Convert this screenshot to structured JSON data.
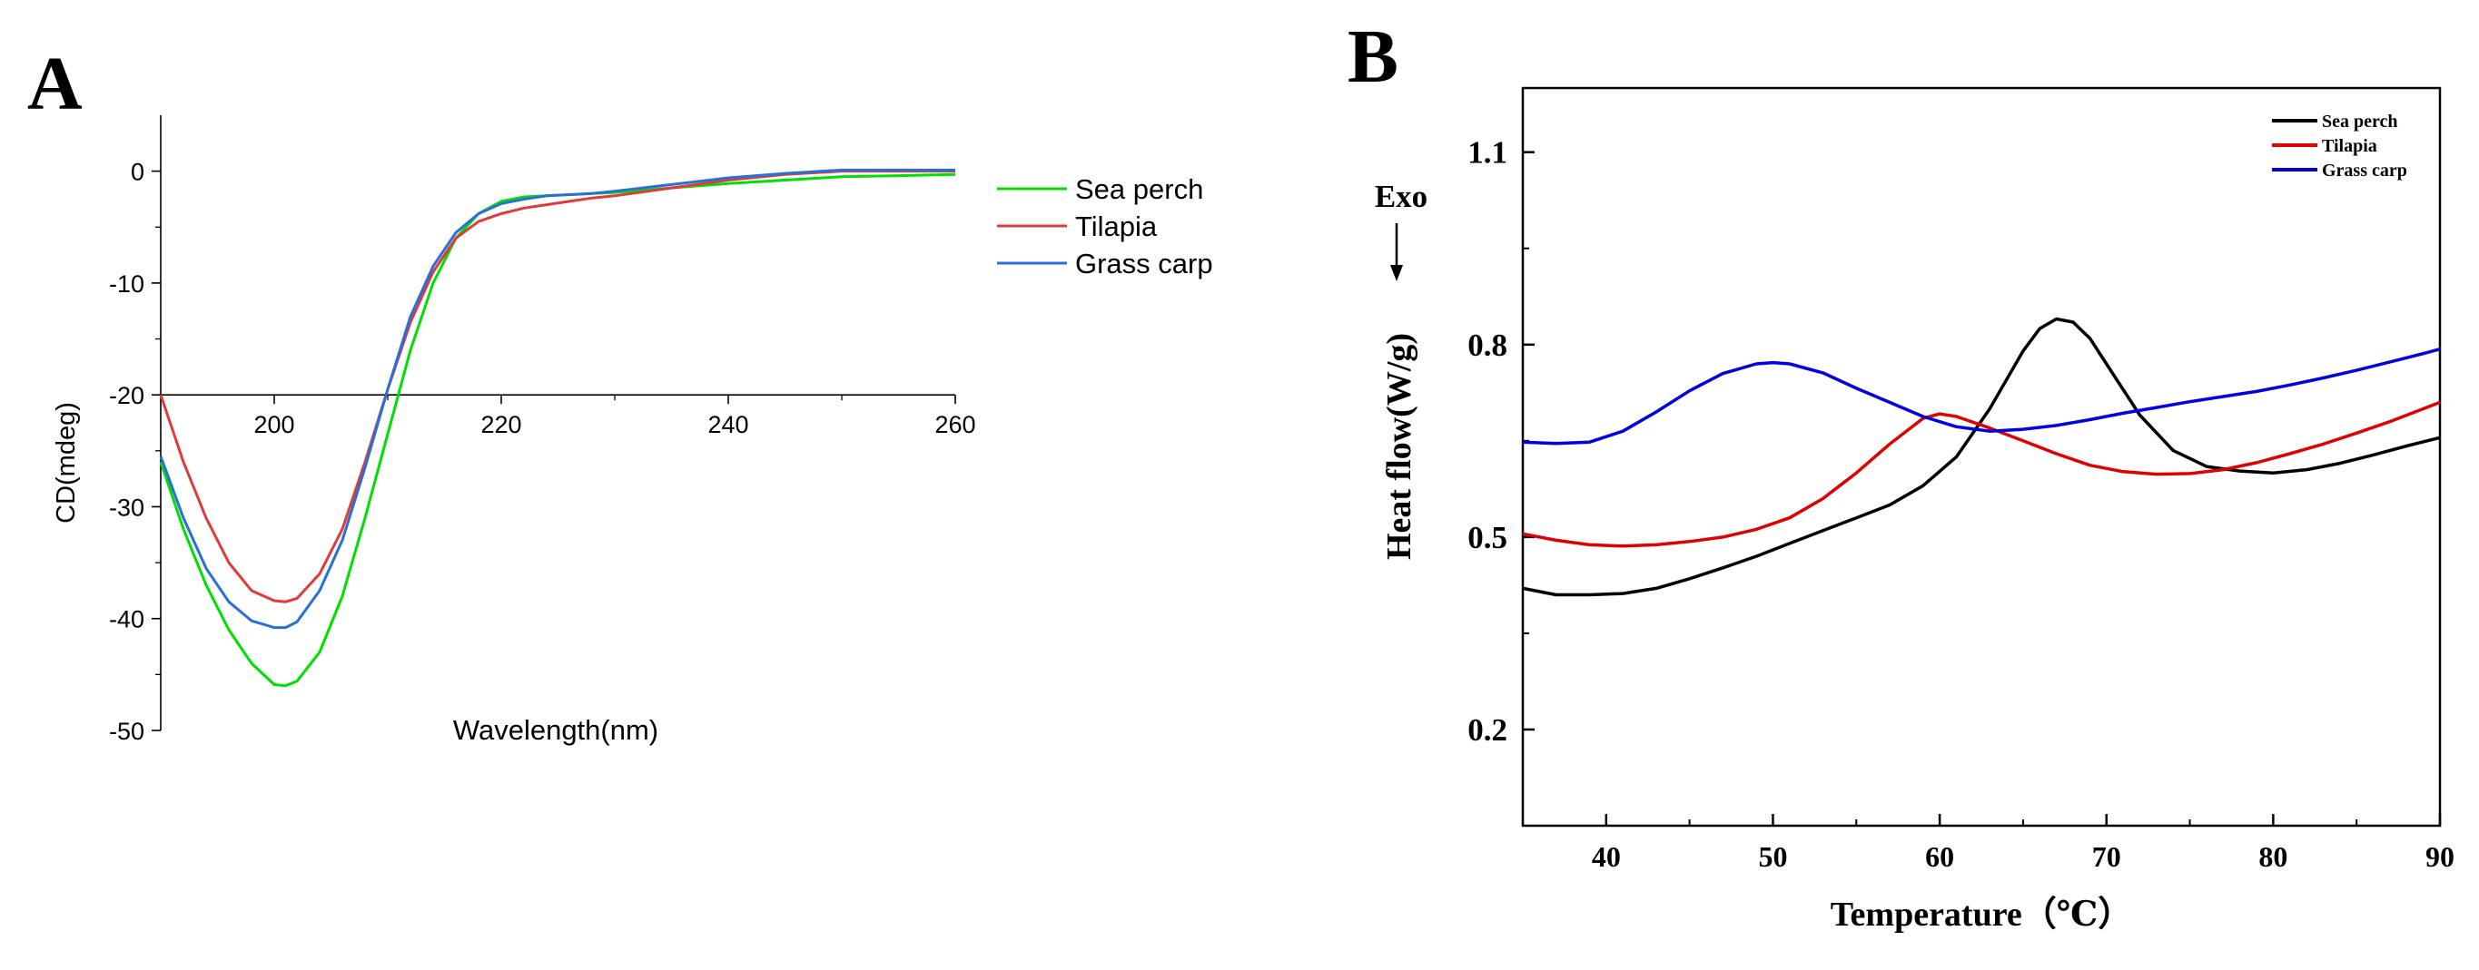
{
  "chart_data": [
    {
      "panel": "A",
      "type": "line",
      "title": "",
      "xlabel": "Wavelength(nm)",
      "ylabel": "CD(mdeg)",
      "xlim": [
        190,
        260
      ],
      "ylim": [
        -50,
        5
      ],
      "xticks": [
        200,
        220,
        240,
        260
      ],
      "yticks": [
        0,
        -10,
        -20,
        -30,
        -40,
        -50
      ],
      "x_axis_crosses_y_at": -20,
      "grid": false,
      "legend_position": "right",
      "series": [
        {
          "name": "Sea perch",
          "color": "#00e000",
          "x": [
            190,
            192,
            194,
            196,
            198,
            200,
            201,
            202,
            204,
            206,
            208,
            210,
            212,
            214,
            216,
            218,
            220,
            222,
            224,
            226,
            228,
            230,
            235,
            240,
            245,
            250,
            255,
            260
          ],
          "y": [
            -26,
            -32,
            -37,
            -41,
            -44,
            -45.9,
            -46,
            -45.6,
            -43,
            -38,
            -31,
            -23.5,
            -16,
            -10,
            -6,
            -3.8,
            -2.7,
            -2.3,
            -2.2,
            -2.1,
            -2,
            -1.9,
            -1.5,
            -1.1,
            -0.8,
            -0.5,
            -0.4,
            -0.3
          ]
        },
        {
          "name": "Tilapia",
          "color": "#e03a3a",
          "x": [
            190,
            192,
            194,
            196,
            198,
            200,
            201,
            202,
            204,
            206,
            208,
            210,
            212,
            214,
            216,
            218,
            220,
            222,
            224,
            226,
            228,
            230,
            235,
            240,
            245,
            250,
            255,
            260
          ],
          "y": [
            -20,
            -26,
            -31,
            -35,
            -37.5,
            -38.4,
            -38.5,
            -38.2,
            -36,
            -32,
            -26,
            -19.5,
            -13.5,
            -9,
            -6,
            -4.5,
            -3.8,
            -3.3,
            -3,
            -2.7,
            -2.4,
            -2.2,
            -1.5,
            -0.8,
            -0.3,
            0,
            0,
            0
          ]
        },
        {
          "name": "Grass carp",
          "color": "#2a6fd6",
          "x": [
            190,
            192,
            194,
            196,
            198,
            200,
            201,
            202,
            204,
            206,
            208,
            210,
            212,
            214,
            216,
            218,
            220,
            222,
            224,
            226,
            228,
            230,
            235,
            240,
            245,
            250,
            255,
            260
          ],
          "y": [
            -25.5,
            -31,
            -35.5,
            -38.5,
            -40.2,
            -40.8,
            -40.8,
            -40.3,
            -37.5,
            -33,
            -26.5,
            -19.5,
            -13,
            -8.5,
            -5.5,
            -3.8,
            -2.9,
            -2.5,
            -2.2,
            -2.1,
            -2,
            -1.8,
            -1.2,
            -0.6,
            -0.2,
            0.1,
            0.1,
            0.1
          ]
        }
      ]
    },
    {
      "panel": "B",
      "type": "line",
      "title": "",
      "xlabel": "Temperature（℃）",
      "ylabel": "Heat flow(W/g)",
      "annotation": "Exo",
      "xlim": [
        35,
        90
      ],
      "ylim": [
        0.05,
        1.2
      ],
      "xticks": [
        40,
        50,
        60,
        70,
        80,
        90
      ],
      "yticks": [
        0.2,
        0.5,
        0.8,
        1.1
      ],
      "grid": false,
      "legend_position": "top-right",
      "series": [
        {
          "name": "Sea perch",
          "color": "#000000",
          "x": [
            35,
            37,
            39,
            41,
            43,
            45,
            47,
            49,
            51,
            53,
            55,
            57,
            59,
            61,
            63,
            65,
            66,
            67,
            68,
            69,
            70,
            72,
            74,
            76,
            78,
            80,
            82,
            84,
            86,
            88,
            90
          ],
          "y": [
            0.42,
            0.41,
            0.41,
            0.412,
            0.42,
            0.435,
            0.452,
            0.47,
            0.49,
            0.51,
            0.53,
            0.55,
            0.58,
            0.625,
            0.7,
            0.79,
            0.825,
            0.84,
            0.835,
            0.81,
            0.77,
            0.69,
            0.635,
            0.61,
            0.603,
            0.6,
            0.605,
            0.615,
            0.628,
            0.642,
            0.655
          ]
        },
        {
          "name": "Tilapia",
          "color": "#e00000",
          "x": [
            35,
            37,
            39,
            41,
            43,
            45,
            47,
            49,
            51,
            53,
            55,
            57,
            59,
            60,
            61,
            63,
            65,
            67,
            69,
            71,
            73,
            75,
            77,
            79,
            81,
            83,
            85,
            87,
            89,
            90
          ],
          "y": [
            0.505,
            0.495,
            0.488,
            0.486,
            0.488,
            0.493,
            0.5,
            0.512,
            0.53,
            0.56,
            0.6,
            0.645,
            0.685,
            0.692,
            0.688,
            0.67,
            0.65,
            0.63,
            0.612,
            0.602,
            0.598,
            0.599,
            0.605,
            0.616,
            0.63,
            0.645,
            0.662,
            0.68,
            0.7,
            0.71
          ]
        },
        {
          "name": "Grass carp",
          "color": "#0000e0",
          "x": [
            35,
            37,
            39,
            41,
            43,
            45,
            47,
            49,
            50,
            51,
            53,
            55,
            57,
            59,
            61,
            63,
            65,
            67,
            69,
            71,
            73,
            75,
            77,
            79,
            81,
            83,
            85,
            87,
            89,
            90
          ],
          "y": [
            0.648,
            0.646,
            0.648,
            0.665,
            0.695,
            0.728,
            0.755,
            0.77,
            0.772,
            0.77,
            0.756,
            0.732,
            0.71,
            0.688,
            0.672,
            0.665,
            0.668,
            0.674,
            0.683,
            0.693,
            0.702,
            0.711,
            0.719,
            0.727,
            0.737,
            0.748,
            0.76,
            0.773,
            0.786,
            0.793
          ]
        }
      ]
    }
  ],
  "panel_labels": {
    "a": "A",
    "b": "B"
  }
}
